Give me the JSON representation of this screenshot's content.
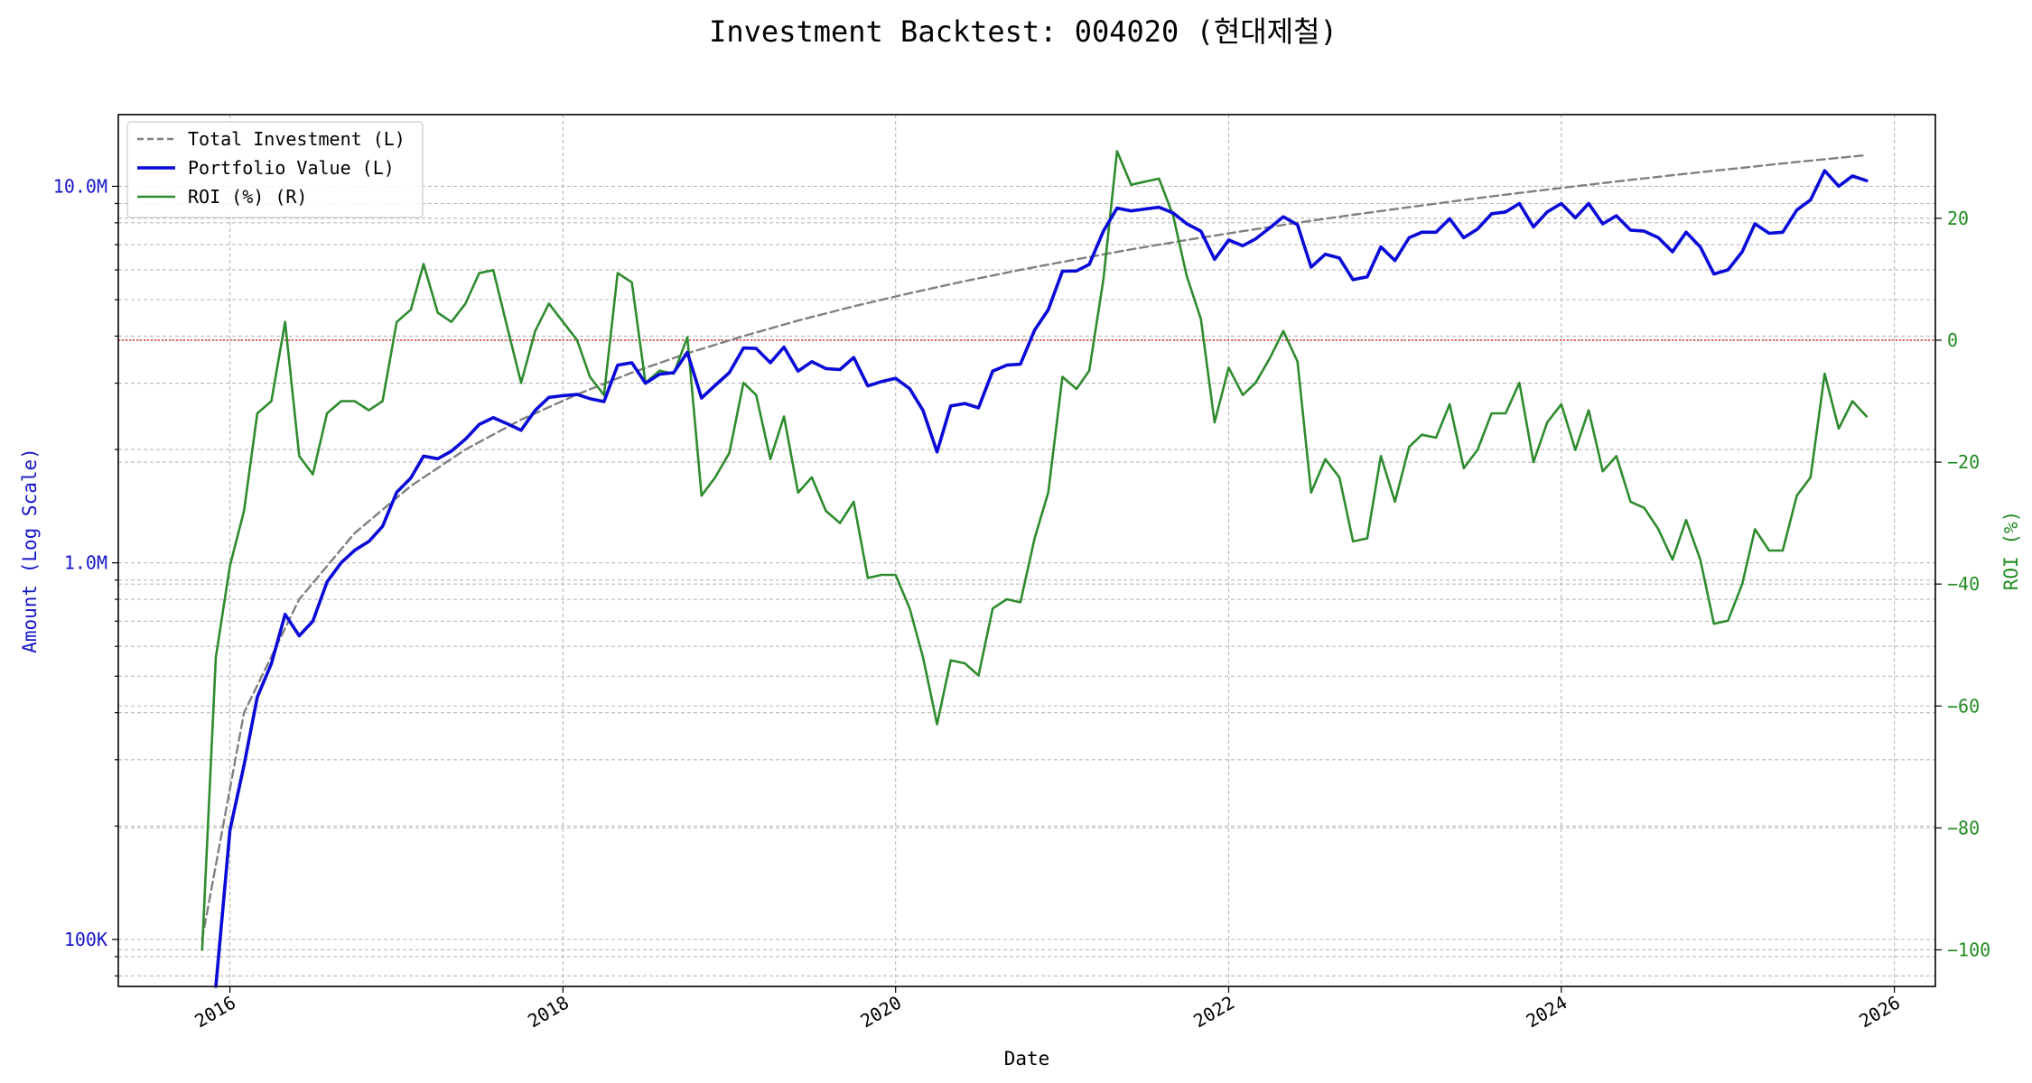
{
  "chart_data": {
    "type": "line",
    "title": "Investment Backtest: 004020 (현대제철)",
    "xlabel": "Date",
    "ylabel_left": "Amount (Log Scale)",
    "ylabel_right": "ROI (%)",
    "left_scale": "log",
    "left_range": [
      75000,
      15500000
    ],
    "right_range": [
      -106,
      37
    ],
    "x_range": [
      "2015-05-01",
      "2026-04-01"
    ],
    "grid": true,
    "legend_position": "top-left",
    "x_ticks": [
      {
        "date": "2016-01-01",
        "label": "2016"
      },
      {
        "date": "2018-01-01",
        "label": "2018"
      },
      {
        "date": "2020-01-01",
        "label": "2020"
      },
      {
        "date": "2022-01-01",
        "label": "2022"
      },
      {
        "date": "2024-01-01",
        "label": "2024"
      },
      {
        "date": "2026-01-01",
        "label": "2026"
      }
    ],
    "left_ticks": [
      {
        "value": 100000,
        "label": "100K"
      },
      {
        "value": 1000000,
        "label": "1.0M"
      },
      {
        "value": 10000000,
        "label": "10.0M"
      }
    ],
    "right_ticks": [
      {
        "value": 20,
        "label": "20"
      },
      {
        "value": 0,
        "label": "0"
      },
      {
        "value": -20,
        "label": "−20"
      },
      {
        "value": -40,
        "label": "−40"
      },
      {
        "value": -60,
        "label": "−60"
      },
      {
        "value": -80,
        "label": "−80"
      },
      {
        "value": -100,
        "label": "−100"
      }
    ],
    "reference_line": {
      "axis": "right",
      "value": 0,
      "color": "#dd2222"
    },
    "colors": {
      "left_axis": "#1515c8",
      "right_axis": "#228b22",
      "investment": "#808080",
      "portfolio": "#0a0ad8",
      "roi": "#2e8b2e"
    },
    "series": [
      {
        "name": "Total Investment (L)",
        "axis": "left",
        "style": "dashed",
        "dates": [
          "2015-11-01",
          "2016-02-01",
          "2016-06-01",
          "2016-10-01",
          "2017-02-01",
          "2017-06-01",
          "2017-10-01",
          "2018-02-01",
          "2018-06-01",
          "2018-10-01",
          "2019-02-01",
          "2019-06-01",
          "2019-10-01",
          "2020-02-01",
          "2020-06-01",
          "2020-10-01",
          "2021-02-01",
          "2021-06-01",
          "2021-10-01",
          "2022-02-01",
          "2022-06-01",
          "2022-10-01",
          "2023-02-01",
          "2023-06-01",
          "2023-10-01",
          "2024-02-01",
          "2024-06-01",
          "2024-10-01",
          "2025-02-01",
          "2025-06-01",
          "2025-11-01"
        ],
        "values": [
          100000,
          400000,
          800000,
          1200000,
          1600000,
          2000000,
          2400000,
          2800000,
          3200000,
          3600000,
          4000000,
          4400000,
          4800000,
          5200000,
          5600000,
          6000000,
          6400000,
          6800000,
          7200000,
          7600000,
          8000000,
          8400000,
          8800000,
          9200000,
          9600000,
          10000000,
          10400000,
          10800000,
          11200000,
          11600000,
          12100000
        ]
      },
      {
        "name": "Portfolio Value (L)",
        "axis": "left",
        "style": "solid",
        "dates": [
          "2015-12-01",
          "2016-01-01",
          "2016-02-01",
          "2016-03-01",
          "2016-04-01",
          "2016-05-01",
          "2016-06-01",
          "2016-07-01",
          "2016-08-01",
          "2016-09-01",
          "2016-10-01",
          "2016-11-01",
          "2016-12-01",
          "2017-01-01",
          "2017-02-01",
          "2017-03-01",
          "2017-04-01",
          "2017-05-01",
          "2017-06-01",
          "2017-07-01",
          "2017-08-01",
          "2017-09-01",
          "2017-10-01",
          "2017-11-01",
          "2017-12-01",
          "2018-01-01",
          "2018-02-01",
          "2018-03-01",
          "2018-04-01",
          "2018-05-01",
          "2018-06-01",
          "2018-07-01",
          "2018-08-01",
          "2018-09-01",
          "2018-10-01",
          "2018-11-01",
          "2018-12-01",
          "2019-01-01",
          "2019-02-01",
          "2019-03-01",
          "2019-04-01",
          "2019-05-01",
          "2019-06-01",
          "2019-07-01",
          "2019-08-01",
          "2019-09-01",
          "2019-10-01",
          "2019-11-01",
          "2019-12-01",
          "2020-01-01",
          "2020-02-01",
          "2020-03-01",
          "2020-04-01",
          "2020-05-01",
          "2020-06-01",
          "2020-07-01",
          "2020-08-01",
          "2020-09-01",
          "2020-10-01",
          "2020-11-01",
          "2020-12-01",
          "2021-01-01",
          "2021-02-01",
          "2021-03-01",
          "2021-04-01",
          "2021-05-01",
          "2021-06-01",
          "2021-07-01",
          "2021-08-01",
          "2021-09-01",
          "2021-10-01",
          "2021-11-01",
          "2021-12-01",
          "2022-01-01",
          "2022-02-01",
          "2022-03-01",
          "2022-04-01",
          "2022-05-01",
          "2022-06-01",
          "2022-07-01",
          "2022-08-01",
          "2022-09-01",
          "2022-10-01",
          "2022-11-01",
          "2022-12-01",
          "2023-01-01",
          "2023-02-01",
          "2023-03-01",
          "2023-04-01",
          "2023-05-01",
          "2023-06-01",
          "2023-07-01",
          "2023-08-01",
          "2023-09-01",
          "2023-10-01",
          "2023-11-01",
          "2023-12-01",
          "2024-01-01",
          "2024-02-01",
          "2024-03-01",
          "2024-04-01",
          "2024-05-01",
          "2024-06-01",
          "2024-07-01",
          "2024-08-01",
          "2024-09-01",
          "2024-10-01",
          "2024-11-01",
          "2024-12-01",
          "2025-01-01",
          "2025-02-01",
          "2025-03-01",
          "2025-04-01",
          "2025-05-01",
          "2025-06-01",
          "2025-07-01",
          "2025-08-01",
          "2025-09-01",
          "2025-10-01",
          "2025-11-01"
        ],
        "values": [
          60000,
          195000,
          290000,
          440000,
          540000,
          730000,
          640000,
          700000,
          890000,
          1000000,
          1080000,
          1140000,
          1250000,
          1540000,
          1680000,
          1920000,
          1890000,
          1980000,
          2130000,
          2330000,
          2430000,
          2340000,
          2250000,
          2540000,
          2750000,
          2780000,
          2800000,
          2730000,
          2680000,
          3350000,
          3400000,
          3000000,
          3170000,
          3200000,
          3620000,
          2740000,
          2960000,
          3200000,
          3720000,
          3710000,
          3400000,
          3740000,
          3230000,
          3420000,
          3280000,
          3260000,
          3510000,
          2950000,
          3030000,
          3090000,
          2900000,
          2540000,
          1970000,
          2610000,
          2650000,
          2580000,
          3230000,
          3350000,
          3370000,
          4150000,
          4700000,
          5950000,
          5960000,
          6200000,
          7600000,
          8750000,
          8600000,
          8700000,
          8800000,
          8500000,
          7950000,
          7600000,
          6400000,
          7200000,
          6950000,
          7250000,
          7750000,
          8300000,
          7900000,
          6100000,
          6600000,
          6450000,
          5650000,
          5750000,
          6900000,
          6350000,
          7300000,
          7550000,
          7550000,
          8200000,
          7300000,
          7700000,
          8450000,
          8550000,
          9000000,
          7800000,
          8550000,
          9000000,
          8250000,
          9000000,
          7950000,
          8350000,
          7650000,
          7600000,
          7300000,
          6700000,
          7550000,
          6900000,
          5850000,
          6000000,
          6700000,
          7950000,
          7500000,
          7550000,
          8650000,
          9200000,
          11000000,
          10000000,
          10650000,
          10350000
        ]
      },
      {
        "name": "ROI (%) (R)",
        "axis": "right",
        "style": "solid",
        "dates": [
          "2015-11-01",
          "2015-12-01",
          "2016-01-01",
          "2016-02-01",
          "2016-03-01",
          "2016-04-01",
          "2016-05-01",
          "2016-06-01",
          "2016-07-01",
          "2016-08-01",
          "2016-09-01",
          "2016-10-01",
          "2016-11-01",
          "2016-12-01",
          "2017-01-01",
          "2017-02-01",
          "2017-03-01",
          "2017-04-01",
          "2017-05-01",
          "2017-06-01",
          "2017-07-01",
          "2017-08-01",
          "2017-09-01",
          "2017-10-01",
          "2017-11-01",
          "2017-12-01",
          "2018-01-01",
          "2018-02-01",
          "2018-03-01",
          "2018-04-01",
          "2018-05-01",
          "2018-06-01",
          "2018-07-01",
          "2018-08-01",
          "2018-09-01",
          "2018-10-01",
          "2018-11-01",
          "2018-12-01",
          "2019-01-01",
          "2019-02-01",
          "2019-03-01",
          "2019-04-01",
          "2019-05-01",
          "2019-06-01",
          "2019-07-01",
          "2019-08-01",
          "2019-09-01",
          "2019-10-01",
          "2019-11-01",
          "2019-12-01",
          "2020-01-01",
          "2020-02-01",
          "2020-03-01",
          "2020-04-01",
          "2020-05-01",
          "2020-06-01",
          "2020-07-01",
          "2020-08-01",
          "2020-09-01",
          "2020-10-01",
          "2020-11-01",
          "2020-12-01",
          "2021-01-01",
          "2021-02-01",
          "2021-03-01",
          "2021-04-01",
          "2021-05-01",
          "2021-06-01",
          "2021-07-01",
          "2021-08-01",
          "2021-09-01",
          "2021-10-01",
          "2021-11-01",
          "2021-12-01",
          "2022-01-01",
          "2022-02-01",
          "2022-03-01",
          "2022-04-01",
          "2022-05-01",
          "2022-06-01",
          "2022-07-01",
          "2022-08-01",
          "2022-09-01",
          "2022-10-01",
          "2022-11-01",
          "2022-12-01",
          "2023-01-01",
          "2023-02-01",
          "2023-03-01",
          "2023-04-01",
          "2023-05-01",
          "2023-06-01",
          "2023-07-01",
          "2023-08-01",
          "2023-09-01",
          "2023-10-01",
          "2023-11-01",
          "2023-12-01",
          "2024-01-01",
          "2024-02-01",
          "2024-03-01",
          "2024-04-01",
          "2024-05-01",
          "2024-06-01",
          "2024-07-01",
          "2024-08-01",
          "2024-09-01",
          "2024-10-01",
          "2024-11-01",
          "2024-12-01",
          "2025-01-01",
          "2025-02-01",
          "2025-03-01",
          "2025-04-01",
          "2025-05-01",
          "2025-06-01",
          "2025-07-01",
          "2025-08-01",
          "2025-09-01",
          "2025-10-01",
          "2025-11-01"
        ],
        "values": [
          -100,
          -52,
          -37,
          -28,
          -12,
          -10,
          3,
          -19,
          -22,
          -12,
          -10,
          -10,
          -11.5,
          -10,
          3,
          5,
          12.5,
          4.5,
          3,
          6,
          11,
          11.5,
          2,
          -7,
          1.5,
          6,
          3,
          0,
          -6,
          -9,
          11,
          9.5,
          -7,
          -5,
          -5.5,
          0.5,
          -25.5,
          -22.5,
          -18.5,
          -7,
          -9,
          -19.5,
          -12.5,
          -25,
          -22.5,
          -28,
          -30,
          -26.5,
          -39,
          -38.5,
          -38.5,
          -44,
          -52,
          -63,
          -52.5,
          -53,
          -55,
          -44,
          -42.5,
          -43,
          -32.5,
          -25,
          -6,
          -8,
          -5,
          10,
          31,
          25.5,
          26,
          26.5,
          20.5,
          10.5,
          3.5,
          -13.5,
          -4.5,
          -9,
          -7,
          -3,
          1.5,
          -3.5,
          -25,
          -19.5,
          -22.5,
          -33,
          -32.5,
          -19,
          -26.5,
          -17.5,
          -15.5,
          -16,
          -10.5,
          -21,
          -18,
          -12,
          -12,
          -7,
          -20,
          -13.5,
          -10.5,
          -18,
          -11.5,
          -21.5,
          -19,
          -26.5,
          -27.5,
          -31,
          -36,
          -29.5,
          -36,
          -46.5,
          -46,
          -40,
          -31,
          -34.5,
          -34.5,
          -25.5,
          -22.5,
          -5.5,
          -14.5,
          -10,
          -12.5
        ]
      }
    ]
  }
}
